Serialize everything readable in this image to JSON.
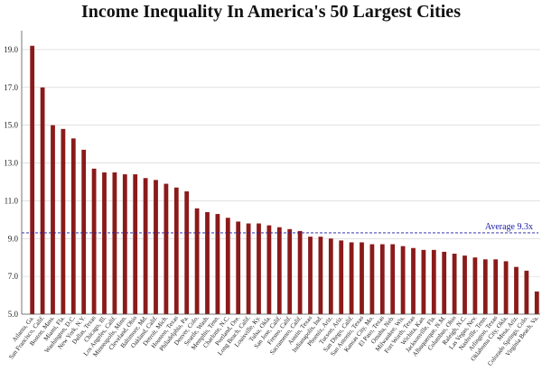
{
  "chart_data": {
    "type": "bar",
    "title": "Income Inequality In America's 50 Largest Cities",
    "xlabel": "",
    "ylabel": "",
    "ylim": [
      5.0,
      20.0
    ],
    "yticks": [
      "5.0",
      "7.0",
      "9.0",
      "11.0",
      "13.0",
      "15.0",
      "17.0",
      "19.0"
    ],
    "grid": true,
    "bar_color": "#8b1a1a",
    "average": {
      "value": 9.3,
      "label": "Average 9.3x",
      "color": "#1a1aa6"
    },
    "categories": [
      "Atlanta, Ga.",
      "San Francisco, Calif.",
      "Boston, Mass.",
      "Miami, Fla.",
      "Washington, D.C.",
      "New York, N.Y.",
      "Dallas, Texas",
      "Chicago, Ill.",
      "Los Angeles, Calif.",
      "Minneapolis, Minn.",
      "Cleveland, Ohio",
      "Baltimore, Md.",
      "Oakland, Calif.",
      "Detroit, Mich.",
      "Houston, Texas",
      "Philadelphia, Pa.",
      "Denver, Colo.",
      "Seattle, Wash.",
      "Memphis, Tenn.",
      "Charlotte, N.C.",
      "Portland, Ore.",
      "Long Beach, Calif.",
      "Louisville, Ky.",
      "Tulsa, Okla.",
      "San Jose, Calif.",
      "Fresno, Calif.",
      "Sacramento, Calif.",
      "Austin, Texas",
      "Indianapolis, Ind.",
      "Phoenix, Ariz.",
      "Tucson, Ariz.",
      "San Diego, Calif.",
      "San Antonio, Texas",
      "Kansas City, Mo.",
      "El Paso, Texas",
      "Omaha, Neb.",
      "Milwaukee, Wis.",
      "Fort Worth, Texas",
      "Wichita, Kan.",
      "Jacksonville, Fla.",
      "Albuquerque, N.M.",
      "Columbus, Ohio",
      "Raleigh, N.C.",
      "Las Vegas, Nev.",
      "Nashville, Tenn.",
      "Arlington, Texas",
      "Oklahoma City, Okla.",
      "Mesa, Ariz.",
      "Colorado Springs, Colo.",
      "Virginia Beach, Va."
    ],
    "values": [
      19.2,
      17.0,
      15.0,
      14.8,
      14.3,
      13.7,
      12.7,
      12.5,
      12.5,
      12.4,
      12.4,
      12.2,
      12.1,
      11.9,
      11.7,
      11.5,
      10.6,
      10.4,
      10.3,
      10.1,
      9.9,
      9.8,
      9.8,
      9.7,
      9.6,
      9.5,
      9.4,
      9.1,
      9.1,
      9.0,
      8.9,
      8.8,
      8.8,
      8.7,
      8.7,
      8.7,
      8.6,
      8.5,
      8.4,
      8.4,
      8.3,
      8.2,
      8.1,
      8.0,
      7.9,
      7.9,
      7.8,
      7.5,
      7.3,
      6.2
    ]
  }
}
